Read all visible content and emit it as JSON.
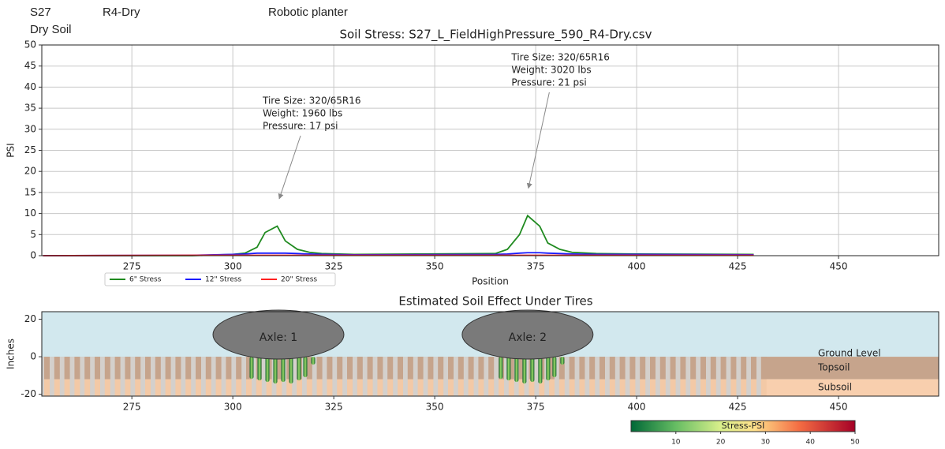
{
  "header": {
    "labels": [
      "S27",
      "R4-Dry",
      "Robotic planter",
      "Dry Soil"
    ]
  },
  "chart_data": [
    {
      "type": "line",
      "title": "Soil Stress: S27_L_FieldHighPressure_590_R4-Dry.csv",
      "x_label": "Position",
      "y_label": "PSI",
      "xlim": [
        252.7,
        474.8
      ],
      "ylim": [
        0,
        50
      ],
      "xticks": [
        275,
        300,
        325,
        350,
        375,
        400,
        425,
        450
      ],
      "yticks": [
        0,
        5,
        10,
        15,
        20,
        25,
        30,
        35,
        40,
        45,
        50
      ],
      "grid": true,
      "x": [
        253,
        290,
        300,
        303,
        306,
        308,
        311,
        313,
        316,
        319,
        322,
        330,
        365,
        368,
        371,
        373,
        376,
        378,
        381,
        384,
        390,
        400,
        429
      ],
      "series": [
        {
          "name": "6\" Stress",
          "color": "#1f8a1f",
          "values": [
            0,
            0,
            0.3,
            0.6,
            2,
            5.5,
            7,
            3.5,
            1.5,
            0.8,
            0.5,
            0.3,
            0.5,
            1.5,
            5,
            9.5,
            7,
            3,
            1.5,
            0.8,
            0.5,
            0.4,
            0.3
          ]
        },
        {
          "name": "12\" Stress",
          "color": "#1a1aff",
          "values": [
            0,
            0.1,
            0.3,
            0.4,
            0.6,
            0.6,
            0.6,
            0.6,
            0.5,
            0.4,
            0.3,
            0.2,
            0.3,
            0.4,
            0.6,
            0.7,
            0.7,
            0.6,
            0.5,
            0.4,
            0.3,
            0.3,
            0.2
          ]
        },
        {
          "name": "20\" Stress",
          "color": "#ff2020",
          "values": [
            0,
            0.1,
            0.1,
            0.1,
            0.1,
            0.1,
            0.1,
            0.1,
            0.1,
            0.1,
            0.1,
            0.1,
            0.1,
            0.1,
            0.1,
            0.1,
            0.1,
            0.1,
            0.1,
            0.1,
            0.1,
            0.1,
            0.1
          ]
        }
      ],
      "annotations": [
        {
          "lines": [
            "Tire Size: 320/65R16",
            "Weight: 1960 lbs",
            "Pressure: 17 psi"
          ],
          "xytext": [
            307.4,
            36.7
          ],
          "xy": [
            311.5,
            13.5
          ]
        },
        {
          "lines": [
            "Tire Size: 320/65R16",
            "Weight: 3020 lbs",
            "Pressure: 21 psi"
          ],
          "xytext": [
            369,
            47
          ],
          "xy": [
            373.2,
            16
          ]
        }
      ]
    },
    {
      "type": "schematic",
      "title": "Estimated Soil Effect Under Tires",
      "y_label": "Inches",
      "xlim": [
        252.7,
        474.8
      ],
      "ylim": [
        -21,
        24
      ],
      "xticks": [
        275,
        300,
        325,
        350,
        375,
        400,
        425,
        450
      ],
      "yticks": [
        -20,
        0,
        20
      ],
      "axles": [
        {
          "label": "Axle: 1",
          "x": 311.3
        },
        {
          "label": "Axle: 2",
          "x": 373
        }
      ],
      "layers": [
        "Ground Level",
        "Topsoil",
        "Subsoil"
      ],
      "colorbar": {
        "label": "Stress-PSI",
        "lim": [
          0,
          50
        ],
        "ticks": [
          10,
          20,
          30,
          40,
          50
        ]
      }
    }
  ]
}
